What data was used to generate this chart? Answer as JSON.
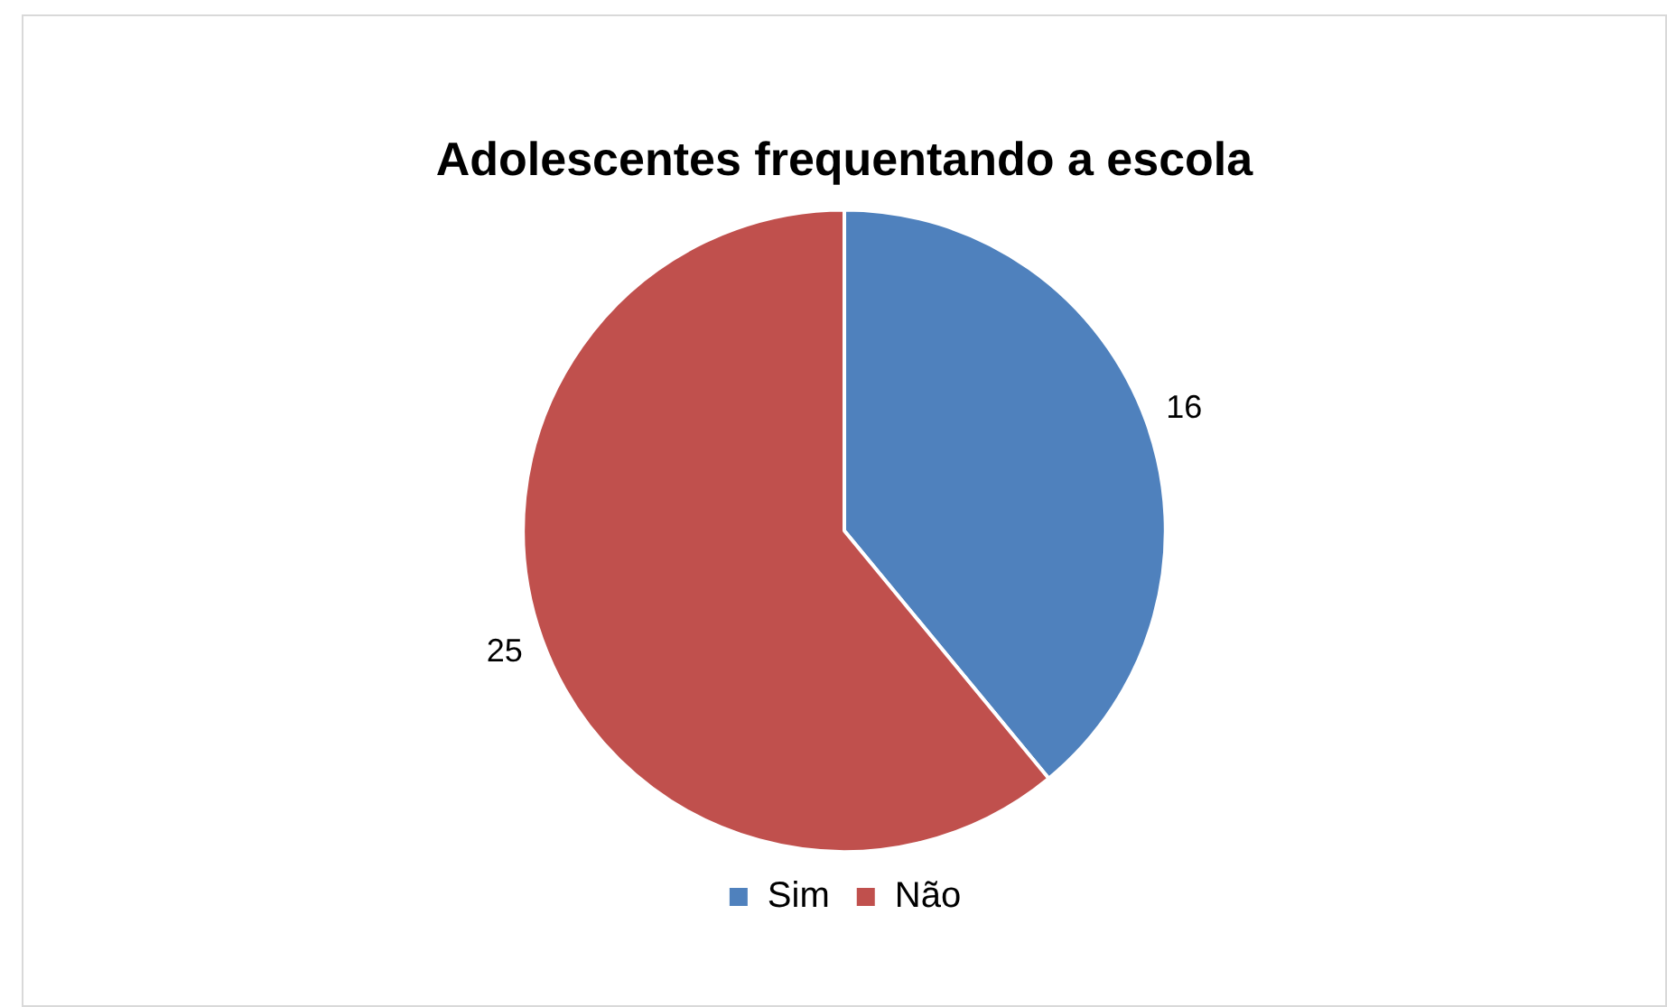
{
  "chart_data": {
    "type": "pie",
    "title": "Adolescentes frequentando a escola",
    "categories": [
      "Sim",
      "Não"
    ],
    "values": [
      16,
      25
    ],
    "colors": [
      "#4f81bd",
      "#c0504d"
    ],
    "data_labels": true,
    "legend": "bottom"
  }
}
